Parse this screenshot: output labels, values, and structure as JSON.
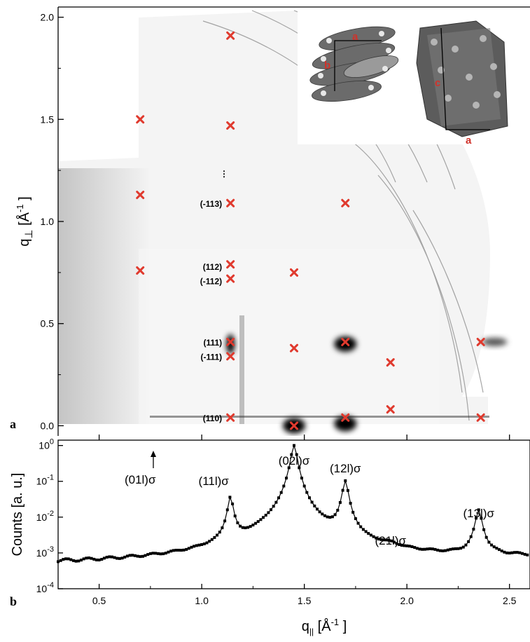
{
  "colors": {
    "marker": "#e03a2e",
    "curve": "#000000",
    "inset_label": "#d0322a"
  },
  "panels": {
    "top_letter": "a",
    "bottom_letter": "b"
  },
  "chart_data": [
    {
      "type": "scatter",
      "ylabel_main": "q",
      "ylabel_sub": "⊥",
      "ylabel_unit_open": "[Å",
      "ylabel_unit_exp": "-1",
      "ylabel_unit_close": "]",
      "xlim": [
        0.3,
        2.6
      ],
      "ylim": [
        -0.05,
        2.05
      ],
      "yticks": [
        "0.0",
        "0.5",
        "1.0",
        "1.5",
        "2.0"
      ],
      "markers": [
        {
          "x": 0.7,
          "y": 0.76
        },
        {
          "x": 0.7,
          "y": 1.13
        },
        {
          "x": 0.7,
          "y": 1.5
        },
        {
          "x": 1.14,
          "y": 0.04
        },
        {
          "x": 1.14,
          "y": 0.34
        },
        {
          "x": 1.14,
          "y": 0.41
        },
        {
          "x": 1.14,
          "y": 0.72
        },
        {
          "x": 1.14,
          "y": 0.79
        },
        {
          "x": 1.14,
          "y": 1.09
        },
        {
          "x": 1.14,
          "y": 1.47
        },
        {
          "x": 1.14,
          "y": 1.91
        },
        {
          "x": 1.45,
          "y": 0.0
        },
        {
          "x": 1.45,
          "y": 0.38
        },
        {
          "x": 1.45,
          "y": 0.75
        },
        {
          "x": 1.7,
          "y": 0.04
        },
        {
          "x": 1.7,
          "y": 0.41
        },
        {
          "x": 1.7,
          "y": 1.09
        },
        {
          "x": 1.92,
          "y": 0.08
        },
        {
          "x": 1.92,
          "y": 0.31
        },
        {
          "x": 2.36,
          "y": 0.04
        },
        {
          "x": 2.36,
          "y": 0.41
        }
      ],
      "hkl_labels": [
        {
          "text": "(110)",
          "x": 1.14,
          "y": 0.04
        },
        {
          "text": "(-111)",
          "x": 1.14,
          "y": 0.34
        },
        {
          "text": "(111)",
          "x": 1.14,
          "y": 0.41
        },
        {
          "text": "(-112)",
          "x": 1.14,
          "y": 0.71
        },
        {
          "text": "(112)",
          "x": 1.14,
          "y": 0.78
        },
        {
          "text": "(-113)",
          "x": 1.14,
          "y": 1.09
        }
      ],
      "ellipsis": "⋮",
      "bright_spots": [
        {
          "x": 1.14,
          "y": 0.4,
          "kind": "streak"
        },
        {
          "x": 1.7,
          "y": 0.4,
          "kind": "spot"
        },
        {
          "x": 1.45,
          "y": 0.0,
          "kind": "spot"
        },
        {
          "x": 1.7,
          "y": 0.01,
          "kind": "spot"
        },
        {
          "x": 2.4,
          "y": 0.41,
          "kind": "smear"
        }
      ],
      "inset_labels": [
        "a",
        "b",
        "c",
        "a"
      ]
    },
    {
      "type": "line",
      "xlabel_main": "q",
      "xlabel_sub": "||",
      "xlabel_unit_open": "[Å",
      "xlabel_unit_exp": "-1",
      "xlabel_unit_close": "]",
      "ylabel": "Counts [a. u.]",
      "yscale": "log",
      "xlim": [
        0.3,
        2.6
      ],
      "ylim_exp": [
        -4,
        0.15
      ],
      "xticks": [
        "0.5",
        "1.0",
        "1.5",
        "2.0",
        "2.5"
      ],
      "ytick_exponents": [
        "-4",
        "-3",
        "-2",
        "-1",
        "0"
      ],
      "ytick_base": "10",
      "peaks": [
        {
          "label": "(01l)σ",
          "x": 0.7
        },
        {
          "label": "(11l)σ",
          "x": 1.14,
          "peak": 0.035
        },
        {
          "label": "(02l)σ",
          "x": 1.45,
          "peak": 1.0
        },
        {
          "label": "(12l)σ",
          "x": 1.7,
          "peak": 0.1
        },
        {
          "label": "(21l)σ",
          "x": 1.92
        },
        {
          "label": "(13l)σ",
          "x": 2.35,
          "peak": 0.015
        }
      ]
    }
  ]
}
